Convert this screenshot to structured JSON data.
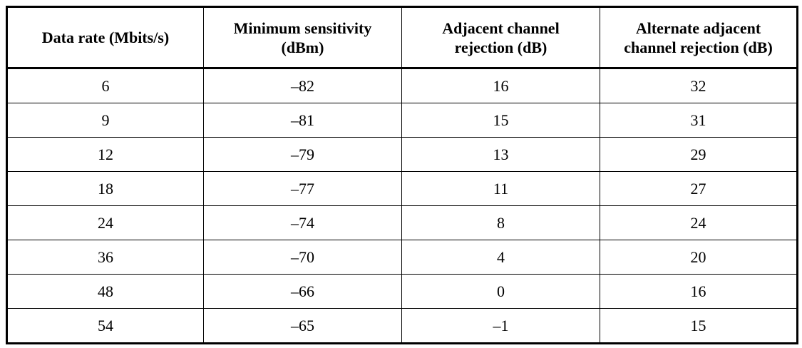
{
  "table": {
    "headers": [
      [
        "Data rate (Mbits/s)"
      ],
      [
        "Minimum sensitivity",
        "(dBm)"
      ],
      [
        "Adjacent channel",
        "rejection (dB)"
      ],
      [
        "Alternate adjacent",
        "channel rejection (dB)"
      ]
    ],
    "rows": [
      [
        "6",
        "–82",
        "16",
        "32"
      ],
      [
        "9",
        "–81",
        "15",
        "31"
      ],
      [
        "12",
        "–79",
        "13",
        "29"
      ],
      [
        "18",
        "–77",
        "11",
        "27"
      ],
      [
        "24",
        "–74",
        "8",
        "24"
      ],
      [
        "36",
        "–70",
        "4",
        "20"
      ],
      [
        "48",
        "–66",
        "0",
        "16"
      ],
      [
        "54",
        "–65",
        "–1",
        "15"
      ]
    ]
  }
}
